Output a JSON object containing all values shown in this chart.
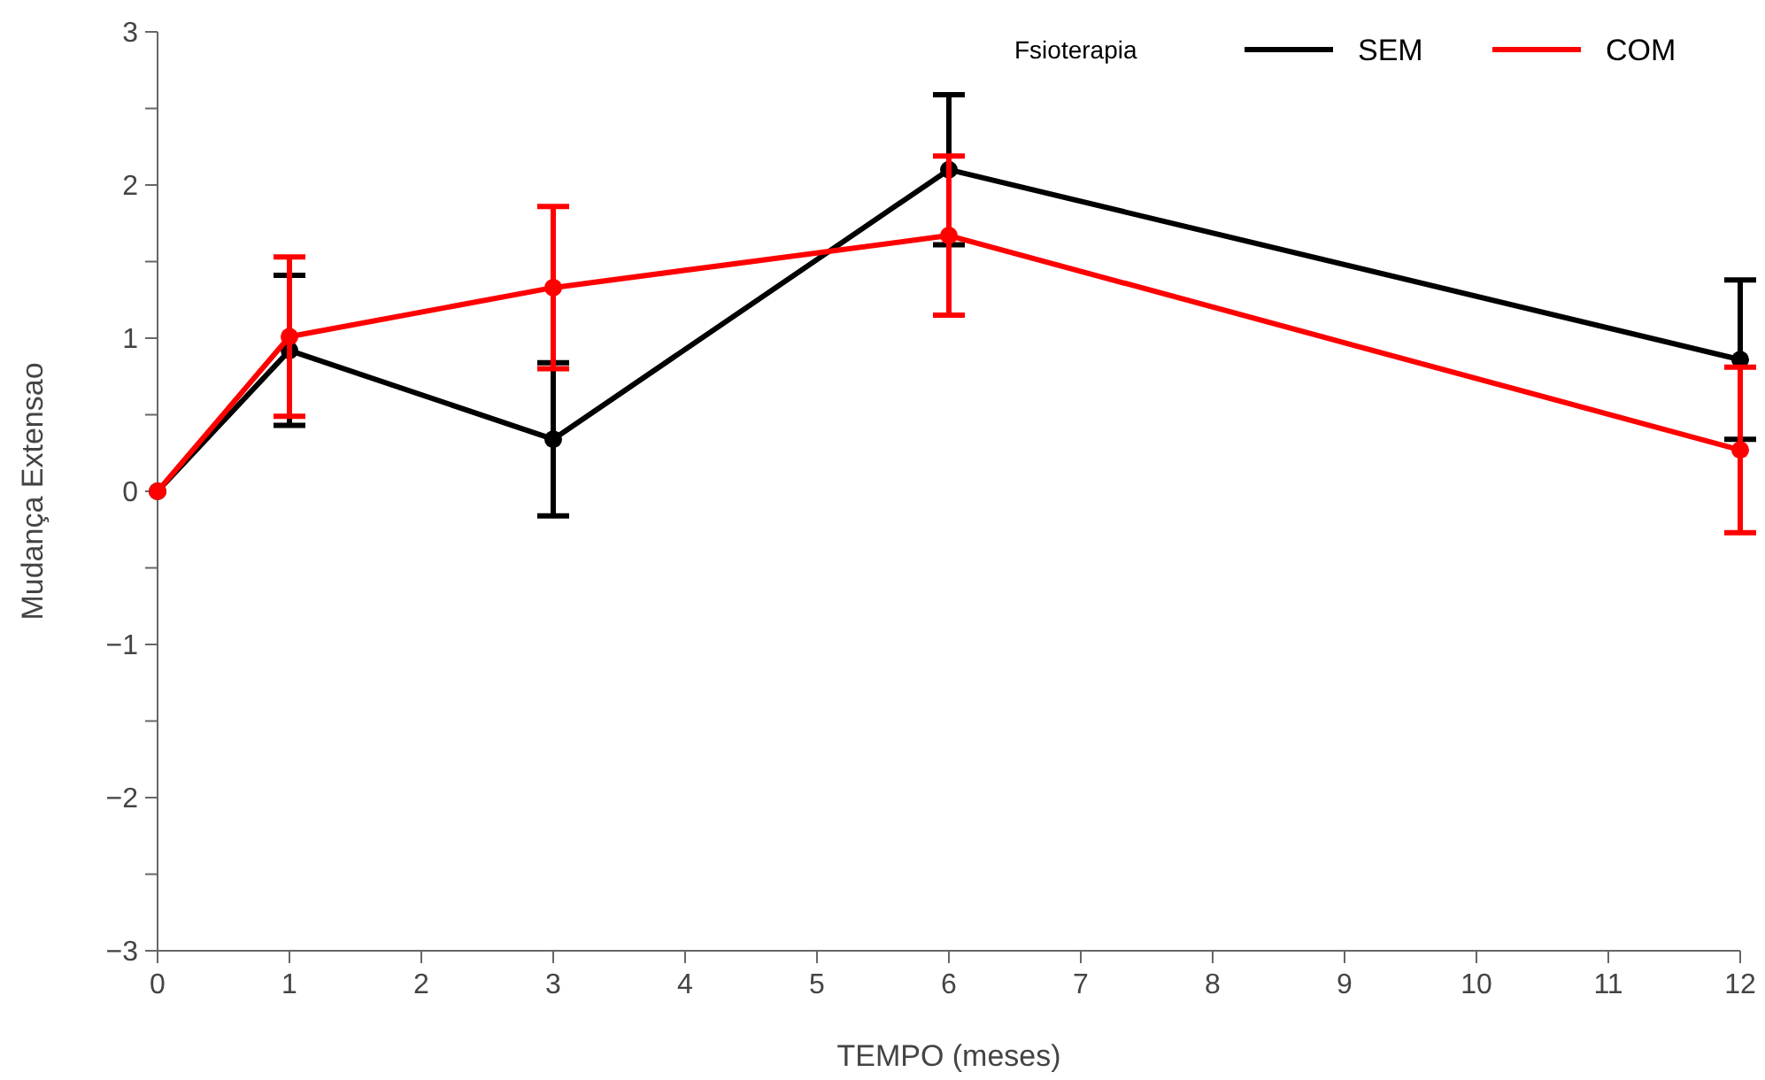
{
  "chart_data": {
    "type": "line",
    "xlabel": "TEMPO (meses)",
    "ylabel": "Mudança Extensao",
    "legend_title": "Fsioterapia",
    "legend": "top right",
    "marker": "circle",
    "grid": false,
    "xlim": [
      0,
      12
    ],
    "xticks": [
      0,
      1,
      2,
      3,
      4,
      5,
      6,
      7,
      8,
      9,
      10,
      11,
      12
    ],
    "ylim": [
      -3,
      3
    ],
    "yticks": [
      -3,
      {
        "value": -2.5,
        "label": null
      },
      -2,
      {
        "value": -1.5,
        "label": null
      },
      -1,
      {
        "value": -0.5,
        "label": null
      },
      0,
      {
        "value": 0.5,
        "label": null
      },
      1,
      {
        "value": 1.5,
        "label": null
      },
      2,
      {
        "value": 2.5,
        "label": null
      },
      3
    ],
    "series": [
      {
        "name": "SEM",
        "color": "#000000",
        "x": [
          0,
          1,
          3,
          6,
          12
        ],
        "values": [
          0,
          0.92,
          0.34,
          2.1,
          0.86
        ],
        "errors": [
          null,
          0.49,
          0.5,
          0.49,
          0.52
        ]
      },
      {
        "name": "COM",
        "color": "#ff0000",
        "x": [
          0,
          1,
          3,
          6,
          12
        ],
        "values": [
          0,
          1.01,
          1.33,
          1.67,
          0.27
        ],
        "errors": [
          null,
          0.52,
          0.53,
          0.52,
          0.54
        ]
      }
    ]
  }
}
